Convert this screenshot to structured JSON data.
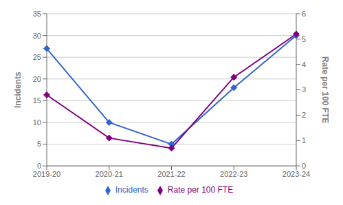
{
  "chart_data": {
    "type": "line",
    "categories": [
      "2019-20",
      "2020-21",
      "2021-22",
      "2022-23",
      "2023-24"
    ],
    "series": [
      {
        "name": "Incidents",
        "color": "#3366CC",
        "marker": "diamond",
        "values": [
          27,
          10,
          5,
          18,
          30
        ]
      },
      {
        "name": "Rate per 100 FTE",
        "color": "#800080",
        "marker": "diamond",
        "axis": "y2",
        "values": [
          2.8,
          1.1,
          0.7,
          3.5,
          5.2
        ]
      }
    ],
    "ylabel": "Incidents",
    "y2label": "Rate per 100 FTE",
    "ylim": [
      0,
      35
    ],
    "yticks": [
      0,
      5,
      10,
      15,
      20,
      25,
      30,
      35
    ],
    "y2lim": [
      0,
      6
    ],
    "y2ticks": [
      0,
      1,
      2,
      3,
      4,
      5,
      6
    ],
    "grid": true,
    "legend": "bottom"
  }
}
